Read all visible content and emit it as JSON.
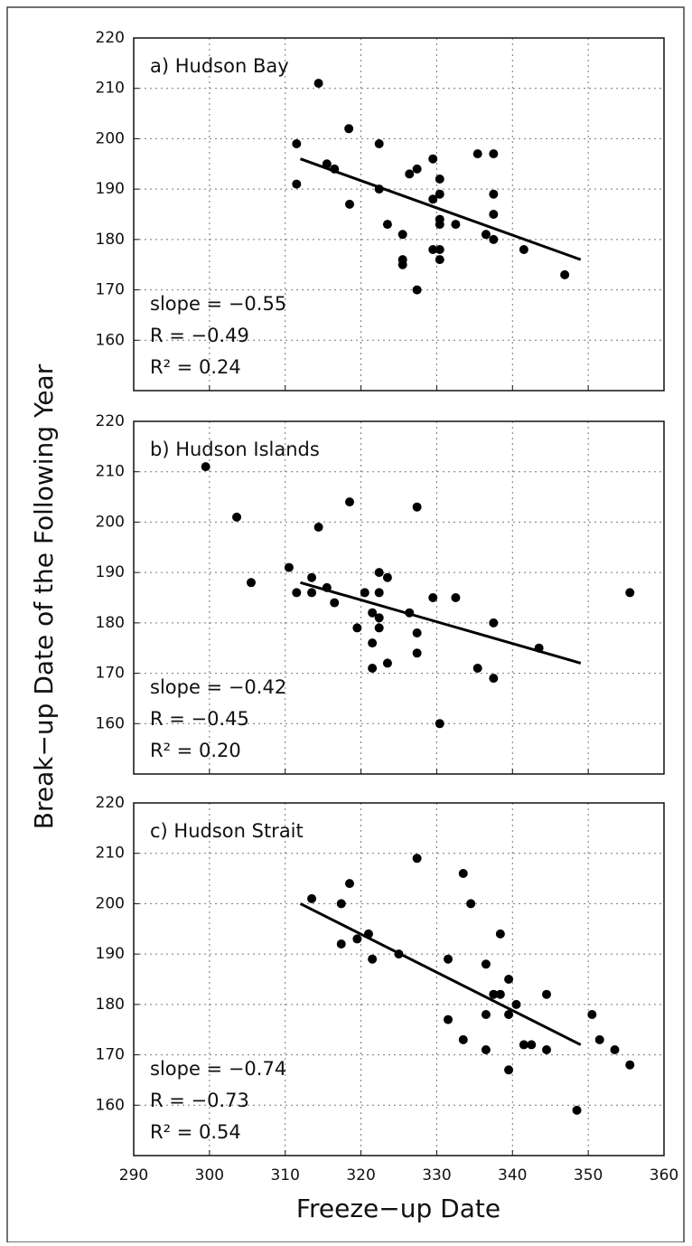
{
  "ylabel": "Break−up Date of the Following Year",
  "xlabel": "Freeze−up Date",
  "chart_data": [
    {
      "type": "scatter",
      "title": "a) Hudson Bay",
      "annotations": [
        "slope = −0.55",
        "R = −0.49",
        "R² = 0.24"
      ],
      "color": "#000000",
      "x": [
        314.4,
        311.5,
        311.5,
        315.5,
        316.5,
        318.4,
        318.5,
        322.4,
        322.4,
        323.5,
        325.5,
        325.5,
        325.5,
        326.4,
        327.4,
        327.4,
        329.5,
        329.5,
        329.5,
        330.4,
        330.4,
        330.4,
        330.4,
        330.4,
        330.4,
        332.5,
        335.4,
        336.5,
        337.5,
        337.5,
        337.5,
        337.5,
        341.5,
        346.9
      ],
      "values": [
        211,
        199,
        191,
        195,
        194,
        202,
        187,
        199,
        190,
        183,
        181,
        176,
        175,
        193,
        194,
        170,
        196,
        188,
        178,
        192,
        189,
        184,
        183,
        178,
        176,
        183,
        197,
        181,
        197,
        189,
        185,
        180,
        178,
        173
      ],
      "fit": {
        "x": [
          312,
          349
        ],
        "values": [
          196,
          176
        ]
      },
      "xlim": [
        290,
        360
      ],
      "ylim": [
        150,
        220
      ],
      "xticks": [
        290,
        300,
        310,
        320,
        330,
        340,
        350,
        360
      ],
      "yticks": [
        160,
        170,
        180,
        190,
        200,
        210,
        220
      ],
      "grid": true
    },
    {
      "type": "scatter",
      "title": "b) Hudson Islands",
      "annotations": [
        "slope = −0.42",
        "R = −0.45",
        "R² = 0.20"
      ],
      "color": "#000000",
      "x": [
        299.5,
        303.6,
        305.5,
        310.5,
        311.5,
        313.5,
        313.5,
        314.4,
        315.5,
        316.5,
        318.5,
        319.5,
        320.5,
        321.5,
        321.5,
        321.5,
        322.4,
        322.4,
        322.4,
        322.4,
        323.5,
        323.5,
        326.4,
        327.4,
        327.4,
        327.4,
        329.5,
        330.4,
        332.5,
        335.4,
        337.5,
        337.5,
        343.5,
        355.5
      ],
      "values": [
        211,
        201,
        188,
        191,
        186,
        186,
        189,
        199,
        187,
        184,
        204,
        179,
        186,
        176,
        182,
        171,
        190,
        186,
        181,
        179,
        189,
        172,
        182,
        203,
        178,
        174,
        185,
        160,
        185,
        171,
        180,
        169,
        175,
        186
      ],
      "fit": {
        "x": [
          312,
          349
        ],
        "values": [
          188,
          172
        ]
      },
      "xlim": [
        290,
        360
      ],
      "ylim": [
        150,
        220
      ],
      "xticks": [
        290,
        300,
        310,
        320,
        330,
        340,
        350,
        360
      ],
      "yticks": [
        160,
        170,
        180,
        190,
        200,
        210,
        220
      ],
      "grid": true
    },
    {
      "type": "scatter",
      "title": "c) Hudson Strait",
      "annotations": [
        "slope = −0.74",
        "R = −0.73",
        "R² = 0.54"
      ],
      "color": "#000000",
      "x": [
        313.5,
        317.4,
        317.4,
        318.5,
        319.5,
        321,
        321.5,
        325,
        327.4,
        331.5,
        331.5,
        333.5,
        333.5,
        334.5,
        336.5,
        336.5,
        336.5,
        338.4,
        337.5,
        338.4,
        339.5,
        339.5,
        339.5,
        340.5,
        341.5,
        342.5,
        344.5,
        344.5,
        348.5,
        350.5,
        351.5,
        353.5,
        355.5
      ],
      "values": [
        201,
        200,
        192,
        204,
        193,
        194,
        189,
        190,
        209,
        189,
        177,
        206,
        173,
        200,
        188,
        178,
        171,
        194,
        182,
        182,
        178,
        185,
        167,
        180,
        172,
        172,
        182,
        171,
        159,
        178,
        173,
        171,
        168
      ],
      "fit": {
        "x": [
          312,
          349
        ],
        "values": [
          200,
          172
        ]
      },
      "xlim": [
        290,
        360
      ],
      "ylim": [
        150,
        220
      ],
      "xticks": [
        290,
        300,
        310,
        320,
        330,
        340,
        350,
        360
      ],
      "yticks": [
        160,
        170,
        180,
        190,
        200,
        210,
        220
      ],
      "grid": true
    }
  ]
}
